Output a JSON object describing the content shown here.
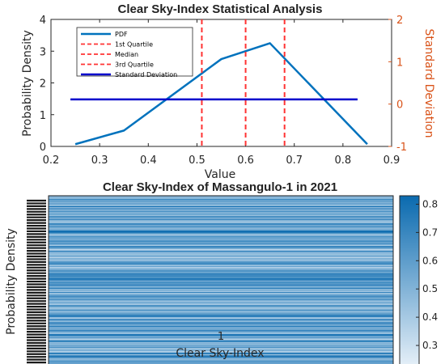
{
  "chart_data": [
    {
      "type": "line",
      "title": "Clear Sky-Index Statistical Analysis",
      "xlabel": "Value",
      "ylabel": "Probability Density",
      "y2label": "Standard Deviation",
      "xlim": [
        0.2,
        0.9
      ],
      "ylim": [
        0,
        4
      ],
      "y2lim": [
        -1,
        2
      ],
      "xticks": [
        "0.2",
        "0.3",
        "0.4",
        "0.5",
        "0.6",
        "0.7",
        "0.8",
        "0.9"
      ],
      "yticks": [
        "0",
        "1",
        "2",
        "3",
        "4"
      ],
      "y2ticks": [
        "-1",
        "0",
        "1",
        "2"
      ],
      "legend_position": "top-left",
      "series": [
        {
          "name": "PDF",
          "type": "line",
          "color": "#0072BD",
          "x": [
            0.25,
            0.35,
            0.55,
            0.65,
            0.85
          ],
          "y": [
            0.07,
            0.5,
            2.75,
            3.25,
            0.07
          ]
        },
        {
          "name": "1st Quartile",
          "type": "vline",
          "color": "#FF3333",
          "x": 0.51
        },
        {
          "name": "Median",
          "type": "vline",
          "color": "#FF3333",
          "x": 0.6
        },
        {
          "name": "3rd Quartile",
          "type": "vline",
          "color": "#FF3333",
          "x": 0.68
        },
        {
          "name": "Standard Deviation",
          "type": "hline",
          "axis": "right",
          "color": "#0000CC",
          "x": [
            0.24,
            0.83
          ],
          "y": 0.11
        }
      ]
    },
    {
      "type": "heatmap",
      "title": "Clear Sky-Index of Massangulo-1 in 2021",
      "xlabel": "Clear Sky-Index",
      "ylabel": "Probability Density",
      "xticks": [
        "1"
      ],
      "colorbar_range": [
        0.22,
        0.83
      ],
      "colorbar_ticks": [
        "0.3",
        "0.4",
        "0.5",
        "0.6",
        "0.7",
        "0.8"
      ],
      "colormap": [
        "#E8F1F9",
        "#0A6AAF"
      ],
      "rows": 365,
      "columns": 1
    }
  ]
}
